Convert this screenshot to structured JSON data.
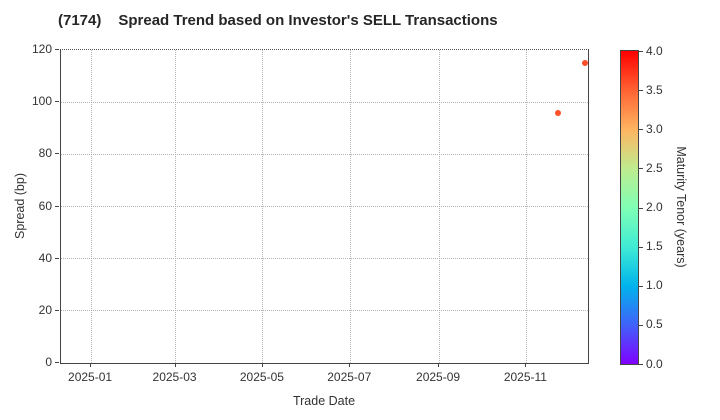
{
  "figure": {
    "ticker": "(7174)",
    "title": "Spread Trend based on Investor's SELL Transactions"
  },
  "chart_data": {
    "type": "scatter",
    "title": "(7174) Spread Trend based on Investor's SELL Transactions",
    "xlabel": "Trade Date",
    "ylabel": "Spread (bp)",
    "x_tick_labels": [
      "2025-01",
      "2025-03",
      "2025-05",
      "2025-07",
      "2025-09",
      "2025-11"
    ],
    "y_ticks": [
      0,
      20,
      40,
      60,
      80,
      100,
      120
    ],
    "ylim": [
      0,
      120
    ],
    "xlim_dates": [
      "2024-12-11",
      "2025-12-14"
    ],
    "grid": true,
    "grid_style": "dotted",
    "legend": "none",
    "points": [
      {
        "trade_date": "2025-11-23",
        "spread_bp": 96,
        "maturity_years": 3.6,
        "color": "#ff4f28"
      },
      {
        "trade_date": "2025-12-12",
        "spread_bp": 115,
        "maturity_years": 3.6,
        "color": "#ff4f28"
      }
    ],
    "colorbar": {
      "label": "Maturity Tenor (years)",
      "min": 0.0,
      "max": 4.0,
      "tick_labels": [
        "4.0",
        "3.5",
        "3.0",
        "2.5",
        "2.0",
        "1.5",
        "1.0",
        "0.5",
        "0.0"
      ],
      "colormap": "rainbow",
      "gradient_top_to_bottom": [
        "#ff0000",
        "#ff6232",
        "#ffb461",
        "#bfec8e",
        "#80ffb5",
        "#40ecd4",
        "#00b4ec",
        "#4062fa",
        "#8000ff"
      ]
    },
    "colors": {
      "axis": "#444444",
      "grid": "#b3b3b3",
      "tick_text": "#333333",
      "title_text": "#262626"
    }
  }
}
